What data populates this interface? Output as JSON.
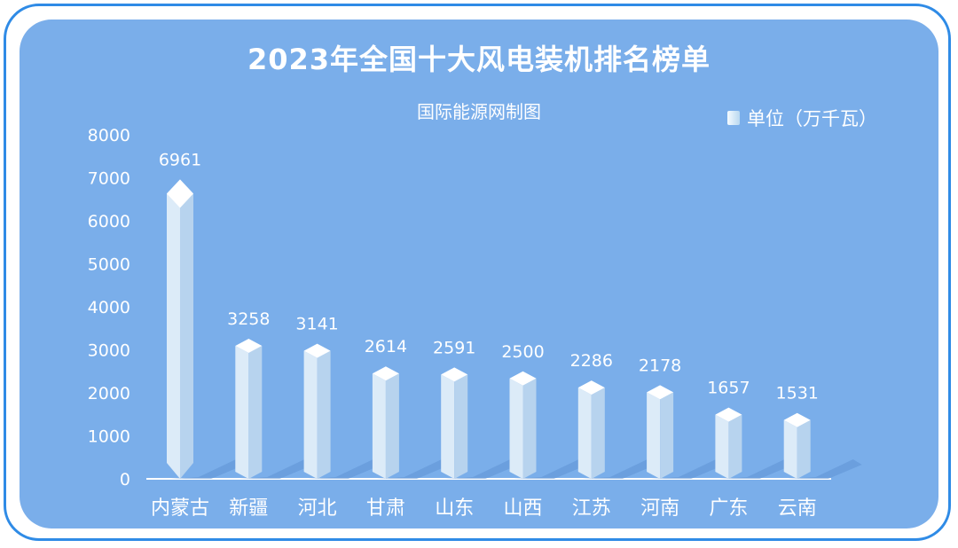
{
  "header": {
    "title": "2023年全国十大风电装机排名榜单",
    "subtitle": "国际能源网制图"
  },
  "colors": {
    "frame": "#2f8be6",
    "panel": "#7aaeea",
    "bar_front": "#dcebf8",
    "bar_side": "#b7d3ee",
    "bar_top": "#ffffff",
    "shadow": "#5f93d4"
  },
  "chart_data": {
    "type": "bar",
    "title": "2023年全国十大风电装机排名榜单",
    "subtitle": "国际能源网制图",
    "categories": [
      "内蒙古",
      "新疆",
      "河北",
      "甘肃",
      "山东",
      "山西",
      "江苏",
      "河南",
      "广东",
      "云南"
    ],
    "series": [
      {
        "name": "单位（万千瓦）",
        "values": [
          6961,
          3258,
          3141,
          2614,
          2591,
          2500,
          2286,
          2178,
          1657,
          1531
        ]
      }
    ],
    "value_labels": [
      "6961",
      "3258",
      "3141",
      "2614",
      "2591",
      "2500",
      "2286",
      "2178",
      "1657",
      "1531"
    ],
    "yticks": [
      "0",
      "1000",
      "2000",
      "3000",
      "4000",
      "5000",
      "6000",
      "7000",
      "8000"
    ],
    "ylim": [
      0,
      8000
    ],
    "legend_position": "top-right",
    "grid": false
  }
}
